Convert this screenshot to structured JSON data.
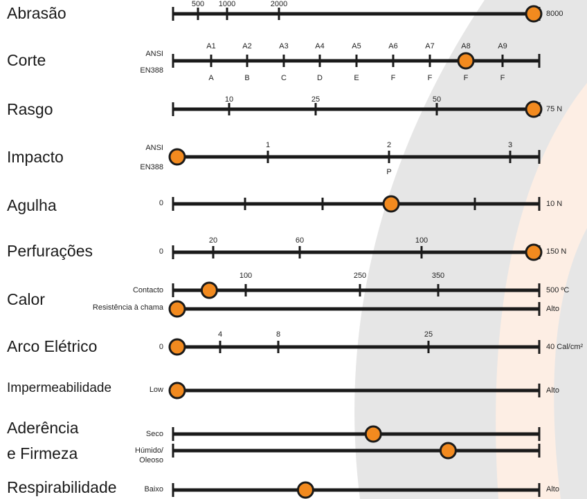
{
  "colors": {
    "line": "#1a1a1a",
    "marker": "#f28a1f",
    "bg_gray": "#e6e6e6",
    "bg_peach": "#fdeee4"
  },
  "rows": [
    {
      "label": "Abrasão",
      "ticks": [
        {
          "t": "500"
        },
        {
          "t": "1000"
        },
        {
          "t": "2000"
        }
      ],
      "end": "8000",
      "level": 1.0
    },
    {
      "label": "Corte",
      "left_top": "ANSI",
      "left_bottom": "EN388",
      "ticks": [
        {
          "t": "A1",
          "b": "A"
        },
        {
          "t": "A2",
          "b": "B"
        },
        {
          "t": "A3",
          "b": "C"
        },
        {
          "t": "A4",
          "b": "D"
        },
        {
          "t": "A5",
          "b": "E"
        },
        {
          "t": "A6",
          "b": "F"
        },
        {
          "t": "A7",
          "b": "F"
        },
        {
          "t": "A8",
          "b": "F"
        },
        {
          "t": "A9",
          "b": "F"
        }
      ],
      "selected": "A8"
    },
    {
      "label": "Rasgo",
      "ticks": [
        {
          "t": "10"
        },
        {
          "t": "25"
        },
        {
          "t": "50"
        }
      ],
      "end": "75 N",
      "level": 1.0
    },
    {
      "label": "Impacto",
      "left_top": "ANSI",
      "left_bottom": "EN388",
      "ticks": [
        {
          "t": "1"
        },
        {
          "t": "2",
          "b": "P"
        },
        {
          "t": "3"
        }
      ],
      "level": 0.0
    },
    {
      "label": "Agulha",
      "start": "0",
      "end": "10 N",
      "level": 0.6
    },
    {
      "label": "Perfurações",
      "start": "0",
      "ticks": [
        {
          "t": "20"
        },
        {
          "t": "60"
        },
        {
          "t": "100"
        }
      ],
      "end": "150 N",
      "level": 1.0
    },
    {
      "label": "Calor",
      "sub_left": "Contacto",
      "ticks": [
        {
          "t": "100"
        },
        {
          "t": "250"
        },
        {
          "t": "350"
        }
      ],
      "end": "500 ºC",
      "level": 0.09,
      "second_left": "Resistência à chama",
      "second_end": "Alto",
      "second_level": 0.0
    },
    {
      "label": "Arco Elétrico",
      "start": "0",
      "ticks": [
        {
          "t": "4"
        },
        {
          "t": "8"
        },
        {
          "t": "25"
        }
      ],
      "end": "40 Cal/cm²",
      "level": 0.0
    },
    {
      "label": "Impermeabilidade",
      "start": "Low",
      "end": "Alto",
      "level": 0.0
    },
    {
      "label_line1": "Aderência",
      "label_line2": "e Firmeza",
      "sub_left": "Seco",
      "level": 0.55,
      "second_left_1": "Húmido/",
      "second_left_2": "Oleoso",
      "second_level": 0.76
    },
    {
      "label": "Respirabilidade",
      "start": "Baixo",
      "end": "Alto",
      "level": 0.36
    }
  ]
}
